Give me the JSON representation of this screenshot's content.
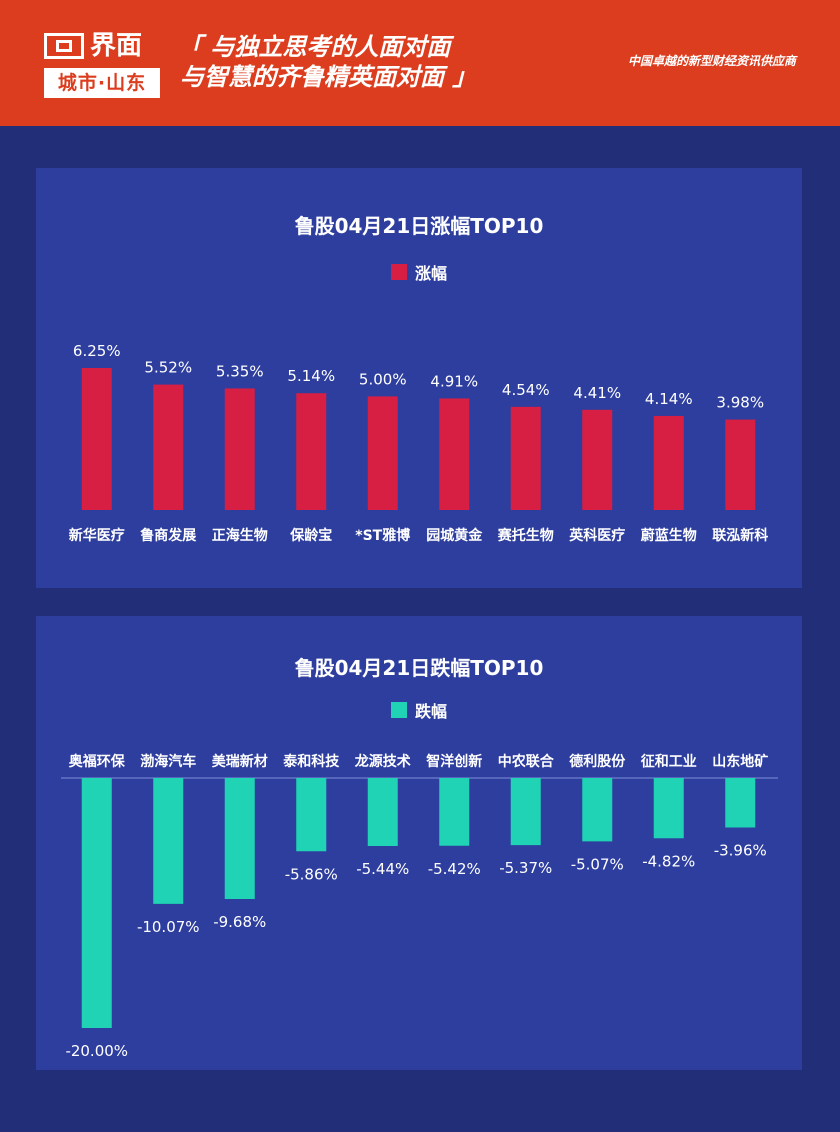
{
  "header": {
    "brand": "界面",
    "brand_sub": "城市·山东",
    "slogan_line1": "「 与独立思考的人面对面",
    "slogan_line2": "与智慧的齐鲁精英面对面 」",
    "tagline": "中国卓越的新型财经资讯供应商",
    "colors": {
      "header_bg": "#db3d1e",
      "page_bg": "#232e78",
      "panel_bg": "#2e3e9e"
    }
  },
  "chart_data": [
    {
      "type": "bar",
      "title": "鲁股04月21日涨幅TOP10",
      "legend": "涨幅",
      "color": "#d61f43",
      "categories": [
        "新华医疗",
        "鲁商发展",
        "正海生物",
        "保龄宝",
        "*ST雅博",
        "园城黄金",
        "赛托生物",
        "英科医疗",
        "蔚蓝生物",
        "联泓新科"
      ],
      "values": [
        6.25,
        5.52,
        5.35,
        5.14,
        5.0,
        4.91,
        4.54,
        4.41,
        4.14,
        3.98
      ],
      "labels": [
        "6.25%",
        "5.52%",
        "5.35%",
        "5.14%",
        "5.00%",
        "4.91%",
        "4.54%",
        "4.41%",
        "4.14%",
        "3.98%"
      ],
      "ylim": [
        0,
        6.25
      ],
      "legend_position": "top-center",
      "grid": false
    },
    {
      "type": "bar",
      "title": "鲁股04月21日跌幅TOP10",
      "legend": "跌幅",
      "color": "#1fd3b4",
      "categories": [
        "奥福环保",
        "渤海汽车",
        "美瑞新材",
        "泰和科技",
        "龙源技术",
        "智洋创新",
        "中农联合",
        "德利股份",
        "征和工业",
        "山东地矿"
      ],
      "values": [
        -20.0,
        -10.07,
        -9.68,
        -5.86,
        -5.44,
        -5.42,
        -5.37,
        -5.07,
        -4.82,
        -3.96
      ],
      "labels": [
        "-20.00%",
        "-10.07%",
        "-9.68%",
        "-5.86%",
        "-5.44%",
        "-5.42%",
        "-5.37%",
        "-5.07%",
        "-4.82%",
        "-3.96%"
      ],
      "ylim": [
        -20,
        0
      ],
      "legend_position": "top-center",
      "grid": false
    }
  ]
}
